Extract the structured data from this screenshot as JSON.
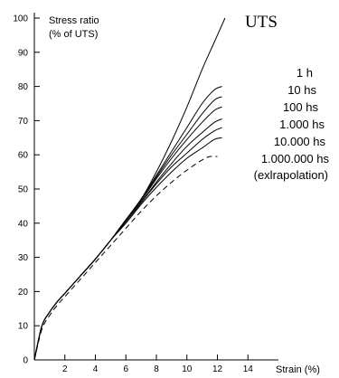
{
  "chart_data": {
    "type": "line",
    "title": "",
    "ylabel_lines": [
      "Stress ratio",
      "(% of UTS)"
    ],
    "xlabel": "Strain (%)",
    "xlim": [
      0,
      16
    ],
    "ylim": [
      0,
      100
    ],
    "x_ticks": [
      2,
      4,
      6,
      8,
      10,
      12,
      14
    ],
    "y_ticks": [
      0,
      10,
      20,
      30,
      40,
      50,
      60,
      70,
      80,
      90,
      100
    ],
    "grid": false,
    "uts_label": "UTS",
    "legend_labels": [
      "1 h",
      "10 hs",
      "100 hs",
      "1.000 hs",
      "10.000 hs",
      "1.000.000 hs",
      "(exlrapolation)"
    ],
    "series": [
      {
        "name": "UTS",
        "style": "solid",
        "x": [
          0,
          0.5,
          1,
          1.5,
          2,
          3,
          4,
          5,
          6,
          7,
          8,
          9,
          10,
          11,
          11.8,
          12.5
        ],
        "y": [
          0,
          10,
          14,
          17,
          19.5,
          24.5,
          29.5,
          35,
          41,
          47,
          55,
          64,
          74,
          85,
          93,
          100
        ]
      },
      {
        "name": "1 h",
        "style": "solid",
        "x": [
          0,
          0.5,
          1,
          1.5,
          2,
          3,
          4,
          5,
          6,
          7,
          8,
          9,
          10,
          11,
          11.8,
          12.3
        ],
        "y": [
          0,
          10,
          14,
          17,
          19.5,
          24.5,
          29.5,
          35,
          41,
          47,
          54,
          61,
          68,
          75,
          79,
          80
        ]
      },
      {
        "name": "10 hs",
        "style": "solid",
        "x": [
          0,
          0.5,
          1,
          1.5,
          2,
          3,
          4,
          5,
          6,
          7,
          8,
          9,
          10,
          11,
          11.8,
          12.3
        ],
        "y": [
          0,
          10,
          14,
          17,
          19.5,
          24.5,
          29.5,
          35,
          41,
          47,
          53.5,
          60,
          66,
          72,
          76,
          77
        ]
      },
      {
        "name": "100 hs",
        "style": "solid",
        "x": [
          0,
          0.5,
          1,
          1.5,
          2,
          3,
          4,
          5,
          6,
          7,
          8,
          9,
          10,
          11,
          11.8,
          12.3
        ],
        "y": [
          0,
          10,
          14,
          17,
          19.5,
          24.5,
          29.5,
          35,
          41,
          46.5,
          53,
          59,
          64.5,
          69.5,
          73,
          74
        ]
      },
      {
        "name": "1.000 hs",
        "style": "solid",
        "x": [
          0,
          0.5,
          1,
          1.5,
          2,
          3,
          4,
          5,
          6,
          7,
          8,
          9,
          10,
          11,
          11.8,
          12.3
        ],
        "y": [
          0,
          10,
          14,
          17,
          19.5,
          24.5,
          29.5,
          35,
          40.5,
          46,
          52,
          57.5,
          62.5,
          66.5,
          69.5,
          70.5
        ]
      },
      {
        "name": "10.000 hs",
        "style": "solid",
        "x": [
          0,
          0.5,
          1,
          1.5,
          2,
          3,
          4,
          5,
          6,
          7,
          8,
          9,
          10,
          11,
          11.8,
          12.3
        ],
        "y": [
          0,
          10,
          14,
          17,
          19.5,
          24.5,
          29.5,
          35,
          40.5,
          46,
          51.5,
          56.5,
          60.5,
          64.5,
          67,
          68
        ]
      },
      {
        "name": "1.000.000 hs",
        "style": "solid",
        "x": [
          0,
          0.5,
          1,
          1.5,
          2,
          3,
          4,
          5,
          6,
          7,
          8,
          9,
          10,
          11,
          11.8,
          12.3
        ],
        "y": [
          0,
          10,
          14,
          17,
          19.5,
          24.5,
          29.5,
          35,
          40,
          45.5,
          50.5,
          55,
          59,
          62,
          64.5,
          65
        ]
      },
      {
        "name": "(exlrapolation)",
        "style": "dashed",
        "x": [
          0,
          0.5,
          1,
          1.5,
          2,
          3,
          4,
          5,
          6,
          7,
          8,
          9,
          10,
          11,
          11.5,
          12
        ],
        "y": [
          0,
          9,
          13,
          16,
          18.5,
          23.5,
          28.5,
          33.5,
          38.5,
          43.5,
          48,
          52,
          55.5,
          58.5,
          59.5,
          59.5
        ]
      }
    ]
  }
}
